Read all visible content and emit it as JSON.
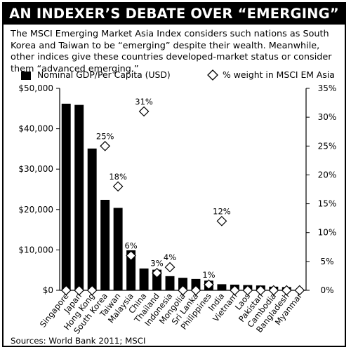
{
  "header": {
    "title": "AN INDEXER’S DEBATE OVER “EMERGING”",
    "subtitle": "The MSCI Emerging Market Asia Index considers such nations as South Korea and Taiwan to be “emerging” despite their wealth. Meanwhile, other indices give these countries developed-market status or consider them “advanced emerging.”"
  },
  "footer": {
    "source": "Sources: World Bank 2011; MSCI"
  },
  "chart_data": {
    "type": "bar",
    "categories": [
      "Singapore",
      "Japan",
      "Hong Kong",
      "South Korea",
      "Taiwan",
      "Malaysia",
      "China",
      "Thailand",
      "Indonesia",
      "Mongolia",
      "Sri Lanka",
      "Philippines",
      "India",
      "Vietnam",
      "Laos",
      "Pakistan",
      "Cambodia",
      "Bangladesh",
      "Myanmar"
    ],
    "series": [
      {
        "name": "Nominal GDP/Per Capita (USD)",
        "type": "bar",
        "axis": "left",
        "color": "#000000",
        "values": [
          46200,
          45900,
          35100,
          22400,
          20400,
          9900,
          5400,
          5100,
          3500,
          3100,
          2800,
          2400,
          1500,
          1400,
          1300,
          1200,
          900,
          800,
          0
        ]
      },
      {
        "name": "% weight in MSCI EM Asia",
        "type": "scatter",
        "marker": "diamond",
        "axis": "right",
        "values": [
          0,
          0,
          0,
          25,
          18,
          6,
          31,
          3,
          4,
          0,
          0,
          1,
          12,
          0,
          0,
          0,
          0,
          0,
          0
        ],
        "data_labels": [
          "",
          "",
          "",
          "25%",
          "18%",
          "6%",
          "31%",
          "3%",
          "4%",
          "",
          "",
          "1%",
          "12%",
          "",
          "",
          "",
          "",
          "",
          ""
        ]
      }
    ],
    "y_left": {
      "ylim": [
        0,
        50000
      ],
      "ticks": [
        0,
        10000,
        20000,
        30000,
        40000,
        50000
      ],
      "tick_labels": [
        "$0",
        "$10,000",
        "$20,000",
        "$30,000",
        "$40,000",
        "$50,000"
      ]
    },
    "y_right": {
      "ylim": [
        0,
        35
      ],
      "ticks": [
        0,
        5,
        10,
        15,
        20,
        25,
        30,
        35
      ],
      "tick_labels": [
        "0%",
        "5%",
        "10%",
        "15%",
        "20%",
        "25%",
        "30%",
        "35%"
      ]
    },
    "legend_placement": "top",
    "grid": false
  }
}
